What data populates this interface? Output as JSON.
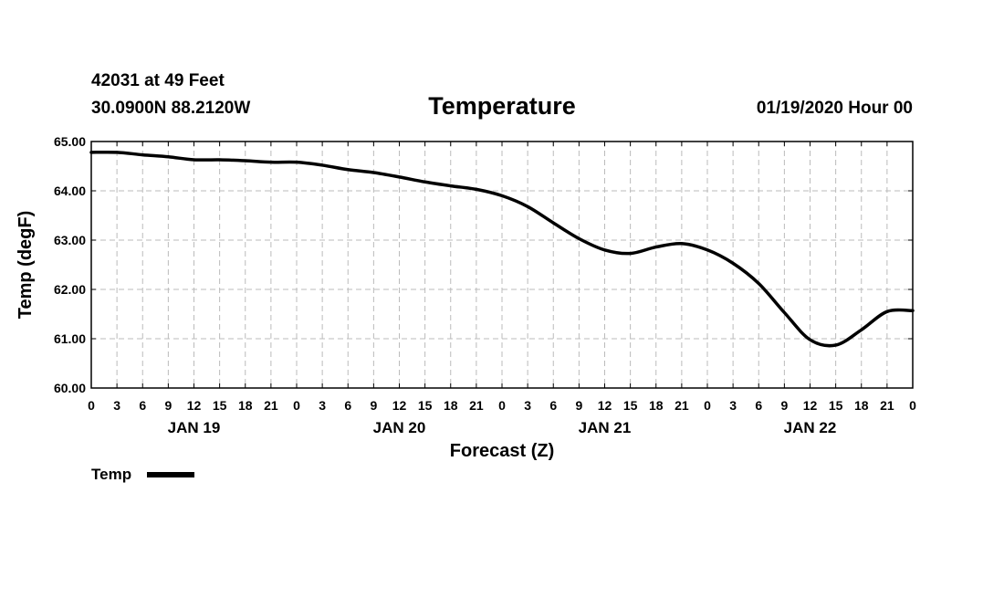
{
  "header": {
    "station_line": "42031 at 49 Feet",
    "location_line": "30.0900N 88.2120W",
    "date_line": "01/19/2020 Hour 00"
  },
  "chart_data": {
    "type": "line",
    "title": "Temperature",
    "xlabel": "Forecast (Z)",
    "ylabel": "Temp (degF)",
    "xlim": [
      0,
      96
    ],
    "ylim": [
      60,
      65
    ],
    "grid": true,
    "x_tick_labels": [
      "0",
      "3",
      "6",
      "9",
      "12",
      "15",
      "18",
      "21",
      "0",
      "3",
      "6",
      "9",
      "12",
      "15",
      "18",
      "21",
      "0",
      "3",
      "6",
      "9",
      "12",
      "15",
      "18",
      "21",
      "0",
      "3",
      "6",
      "9",
      "12",
      "15",
      "18",
      "21",
      "0"
    ],
    "y_tick_labels": [
      "60.00",
      "61.00",
      "62.00",
      "63.00",
      "64.00",
      "65.00"
    ],
    "date_labels": [
      {
        "label": "JAN 19",
        "hour": 12
      },
      {
        "label": "JAN 20",
        "hour": 36
      },
      {
        "label": "JAN 21",
        "hour": 60
      },
      {
        "label": "JAN 22",
        "hour": 84
      }
    ],
    "series": [
      {
        "name": "Temp",
        "color": "#000000",
        "x": [
          0,
          3,
          6,
          9,
          12,
          15,
          18,
          21,
          24,
          27,
          30,
          33,
          36,
          39,
          42,
          45,
          48,
          51,
          54,
          57,
          60,
          63,
          66,
          69,
          72,
          75,
          78,
          81,
          84,
          87,
          90,
          93,
          96
        ],
        "values": [
          64.78,
          64.78,
          64.73,
          64.69,
          64.63,
          64.63,
          64.61,
          64.58,
          64.58,
          64.52,
          64.43,
          64.37,
          64.28,
          64.18,
          64.1,
          64.03,
          63.9,
          63.68,
          63.35,
          63.03,
          62.8,
          62.73,
          62.86,
          62.93,
          62.8,
          62.53,
          62.12,
          61.53,
          60.98,
          60.87,
          61.18,
          61.55,
          61.57
        ]
      }
    ],
    "legend": {
      "position": "bottom-left",
      "entries": [
        "Temp"
      ]
    }
  }
}
